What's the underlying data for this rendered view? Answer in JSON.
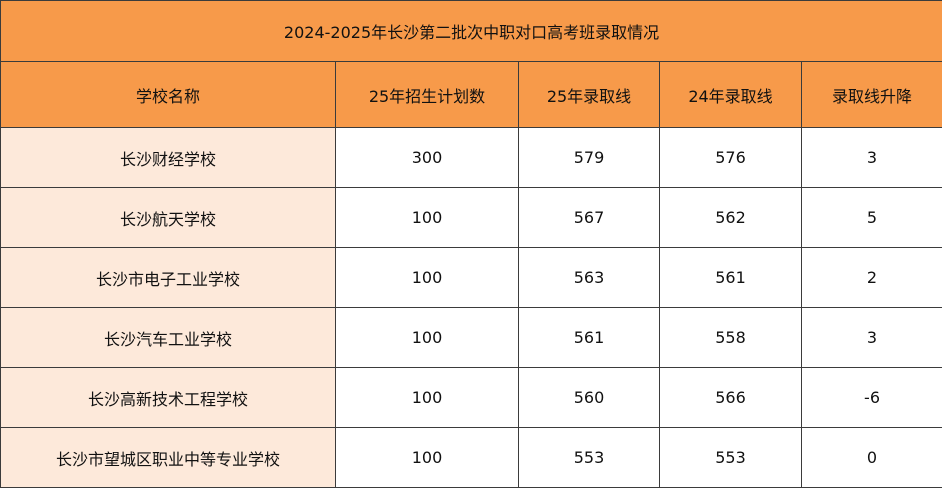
{
  "title": "2024-2025年长沙第二批次中职对口高考班录取情况",
  "columns": [
    "学校名称",
    "25年招生计划数",
    "25年录取线",
    "24年录取线",
    "录取线升降"
  ],
  "rows": [
    [
      "长沙财经学校",
      "300",
      "579",
      "576",
      "3"
    ],
    [
      "长沙航天学校",
      "100",
      "567",
      "562",
      "5"
    ],
    [
      "长沙市电子工业学校",
      "100",
      "563",
      "561",
      "2"
    ],
    [
      "长沙汽车工业学校",
      "100",
      "561",
      "558",
      "3"
    ],
    [
      "长沙高新技术工程学校",
      "100",
      "560",
      "566",
      "-6"
    ],
    [
      "长沙市望城区职业中等专业学校",
      "100",
      "553",
      "553",
      "0"
    ]
  ],
  "colors": {
    "header_bg": "#f79a4a",
    "name_col_bg": "#fde9da",
    "cell_bg": "#ffffff",
    "border": "#3b3b3b"
  }
}
